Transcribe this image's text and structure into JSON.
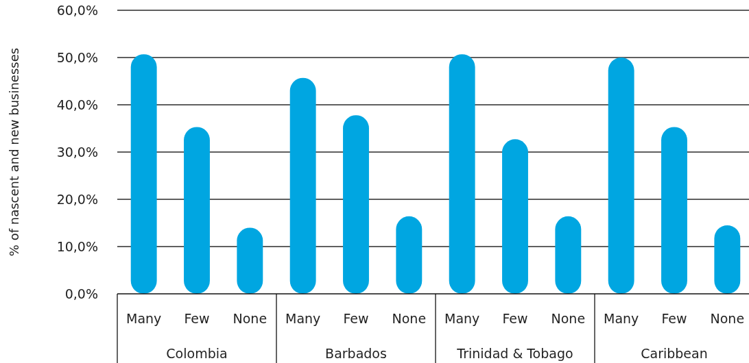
{
  "chart_data": {
    "type": "bar",
    "ylabel": "% of nascent and new businesses",
    "categories": [
      "Colombia",
      "Barbados",
      "Trinidad & Tobago",
      "Caribbean"
    ],
    "series": [
      {
        "name": "Many",
        "color": "#00a6e1",
        "values": [
          50.7,
          45.7,
          50.7,
          50.0
        ]
      },
      {
        "name": "Few",
        "color": "#00a6e1",
        "values": [
          35.3,
          37.8,
          32.7,
          35.3
        ]
      },
      {
        "name": "None",
        "color": "#00a6e1",
        "values": [
          14.0,
          16.4,
          16.4,
          14.5
        ]
      }
    ],
    "ylim": [
      0,
      60
    ],
    "yticks": [
      {
        "value": 0,
        "label": "0,0%"
      },
      {
        "value": 10,
        "label": "10,0%"
      },
      {
        "value": 20,
        "label": "20,0%"
      },
      {
        "value": 30,
        "label": "30,0%"
      },
      {
        "value": 40,
        "label": "40,0%"
      },
      {
        "value": 50,
        "label": "50,0%"
      },
      {
        "value": 60,
        "label": "60,0%"
      }
    ],
    "grid": "y"
  }
}
